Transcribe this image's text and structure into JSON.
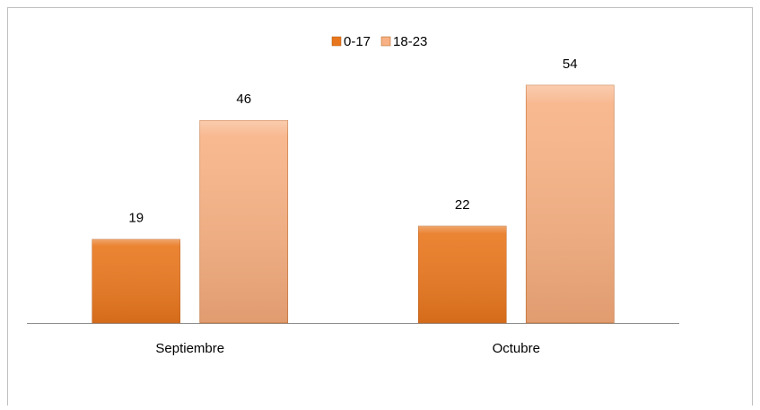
{
  "chart_data": {
    "type": "bar",
    "categories": [
      "Septiembre",
      "Octubre"
    ],
    "series": [
      {
        "name": "0-17",
        "color": "#e8761c",
        "values": [
          19,
          22
        ]
      },
      {
        "name": "18-23",
        "color": "#f7b184",
        "values": [
          46,
          54
        ]
      }
    ],
    "legend": "top"
  }
}
